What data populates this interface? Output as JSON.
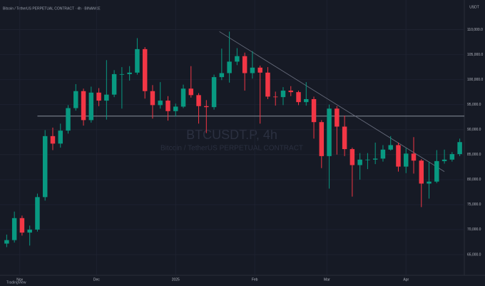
{
  "chart_data": {
    "type": "candlestick",
    "header": "Bitcoin / TetherUS PERPETUAL CONTRACT · 4h · BINANCE",
    "watermark_title": "BTCUSDT.P, 4h",
    "watermark_subtitle": "Bitcoin / TetherUS PERPETUAL CONTRACT",
    "currency": "USDT",
    "brand": "TradingView",
    "up_color": "#089981",
    "down_color": "#f23645",
    "open": [
      67200,
      67900,
      72300,
      69400,
      70000,
      76500,
      88700,
      87200,
      89800,
      94300,
      97700,
      91900,
      97400,
      95800,
      97000,
      101100,
      101100,
      101400,
      106100,
      97700,
      94900,
      95800,
      93700,
      94600,
      98200,
      96900,
      94700,
      94500,
      100500,
      101300,
      103600,
      104700,
      101300,
      102400,
      101400,
      96600,
      96500,
      97800,
      97500,
      95500,
      96100,
      91500,
      84700,
      94200,
      90600,
      86100,
      82900,
      84000,
      84000,
      84200,
      86000,
      86900,
      82600,
      85200,
      83800,
      79200,
      79600,
      83700,
      84000,
      85100
    ],
    "high": [
      69000,
      73600,
      72800,
      70800,
      77200,
      89900,
      90400,
      91200,
      94900,
      99100,
      98200,
      98600,
      98300,
      103900,
      101900,
      102500,
      102700,
      108300,
      106500,
      98900,
      99500,
      96700,
      95200,
      99000,
      102700,
      97300,
      95900,
      101000,
      106200,
      109600,
      106300,
      105400,
      105700,
      102800,
      102500,
      97600,
      98500,
      98700,
      97800,
      99500,
      96600,
      91900,
      95000,
      94700,
      92800,
      86400,
      85300,
      85300,
      87400,
      86900,
      88700,
      87400,
      86300,
      88500,
      84100,
      83600,
      85900,
      86000,
      85500,
      88200
    ],
    "low": [
      66500,
      67400,
      68800,
      66800,
      69600,
      75800,
      85900,
      86400,
      89200,
      93800,
      90800,
      91400,
      94700,
      92000,
      96500,
      94200,
      99800,
      101000,
      96200,
      92200,
      94200,
      91800,
      92600,
      94300,
      96400,
      91200,
      89300,
      94000,
      99900,
      99400,
      102900,
      97800,
      100200,
      91200,
      96100,
      94800,
      94900,
      96700,
      94900,
      94800,
      88200,
      82300,
      78200,
      85000,
      84700,
      76600,
      80000,
      82100,
      83100,
      83600,
      85800,
      81600,
      81300,
      81200,
      74500,
      76200,
      79300,
      83200,
      83600,
      84700
    ],
    "close": [
      67900,
      72300,
      69400,
      70000,
      76500,
      88700,
      87200,
      89800,
      94300,
      97700,
      91900,
      97400,
      95800,
      97000,
      101100,
      101100,
      101400,
      106100,
      97700,
      94900,
      95800,
      93700,
      94600,
      98200,
      96900,
      94700,
      94500,
      100500,
      101300,
      103600,
      104700,
      101300,
      102400,
      101400,
      96600,
      96500,
      97800,
      97500,
      95500,
      96100,
      91500,
      84700,
      94200,
      90600,
      86100,
      82900,
      84000,
      84000,
      84200,
      86000,
      86900,
      82600,
      85200,
      83800,
      79200,
      79600,
      83700,
      84000,
      85100,
      87500
    ],
    "xlim": [
      -0.5,
      59.5
    ],
    "xticks": [
      {
        "value": 1.7,
        "label": "Nov"
      },
      {
        "value": 11.7,
        "label": "Dec"
      },
      {
        "value": 22,
        "label": "2025"
      },
      {
        "value": 32.3,
        "label": "Feb"
      },
      {
        "value": 41.7,
        "label": "Mar"
      },
      {
        "value": 52,
        "label": "Apr"
      }
    ],
    "ylim": [
      61000,
      114500
    ],
    "yticks": [
      {
        "value": 65000,
        "label": "65,000.0"
      },
      {
        "value": 70000,
        "label": "70,000.0"
      },
      {
        "value": 75000,
        "label": "75,000.0"
      },
      {
        "value": 80000,
        "label": "80,000.0"
      },
      {
        "value": 85000,
        "label": "85,000.0"
      },
      {
        "value": 90000,
        "label": "90,000.0"
      },
      {
        "value": 95000,
        "label": "95,000.0"
      },
      {
        "value": 100000,
        "label": "100,000.0"
      },
      {
        "value": 105000,
        "label": "105,000.0"
      },
      {
        "value": 110000,
        "label": "110,000.0"
      }
    ],
    "hline": 92700,
    "trendline": {
      "x": [
        27.7,
        57
      ],
      "y": [
        109600,
        81600
      ]
    }
  }
}
